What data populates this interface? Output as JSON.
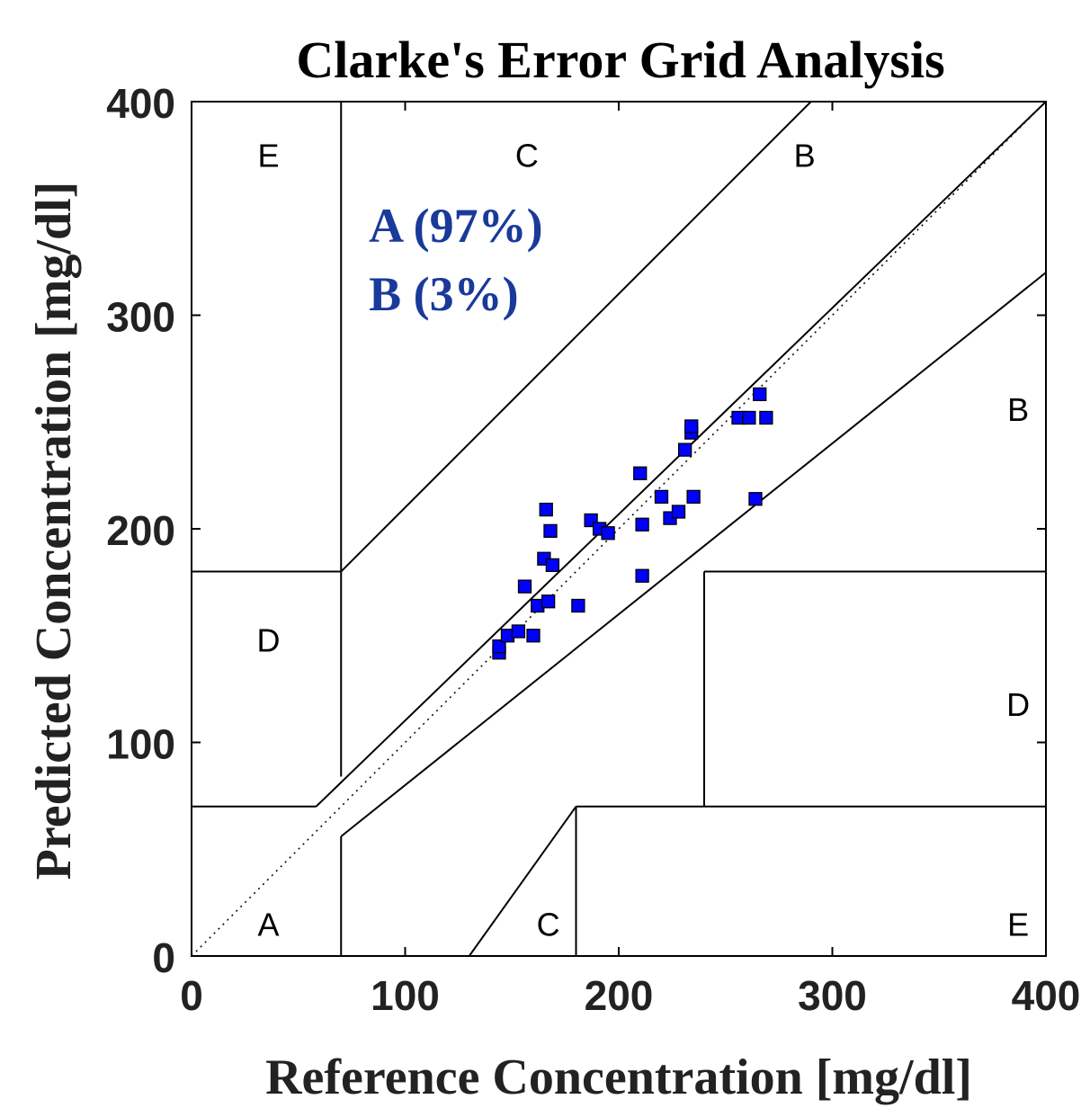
{
  "chart_data": {
    "type": "scatter",
    "title": "Clarke's Error Grid Analysis",
    "xlabel": "Reference Concentration [mg/dl]",
    "ylabel": "Predicted Concentration [mg/dl]",
    "xlim": [
      0,
      400
    ],
    "ylim": [
      0,
      400
    ],
    "xticks": [
      "0",
      "100",
      "200",
      "300",
      "400"
    ],
    "yticks": [
      "0",
      "100",
      "200",
      "300",
      "400"
    ],
    "grid": false,
    "marker_color": "#0000ff",
    "stat_color": "#1a3a9a",
    "zone_lines": [
      {
        "x": [
          0,
          58.33
        ],
        "y": [
          70,
          70
        ]
      },
      {
        "x": [
          58.33,
          400
        ],
        "y": [
          70,
          400
        ]
      },
      {
        "x": [
          70,
          70
        ],
        "y": [
          84,
          400
        ]
      },
      {
        "x": [
          70,
          290
        ],
        "y": [
          180,
          400
        ]
      },
      {
        "x": [
          70,
          70
        ],
        "y": [
          0,
          56
        ]
      },
      {
        "x": [
          70,
          400
        ],
        "y": [
          56,
          320
        ]
      },
      {
        "x": [
          180,
          400
        ],
        "y": [
          70,
          70
        ]
      },
      {
        "x": [
          180,
          180
        ],
        "y": [
          0,
          70
        ]
      },
      {
        "x": [
          240,
          240
        ],
        "y": [
          70,
          180
        ]
      },
      {
        "x": [
          240,
          400
        ],
        "y": [
          180,
          180
        ]
      },
      {
        "x": [
          130,
          180
        ],
        "y": [
          0,
          70
        ]
      },
      {
        "x": [
          0,
          70
        ],
        "y": [
          180,
          180
        ]
      }
    ],
    "diagonal": {
      "x": [
        0,
        400
      ],
      "y": [
        0,
        400
      ],
      "style": "dotted"
    },
    "zone_labels": [
      {
        "text": "E",
        "x": 36,
        "y": 375
      },
      {
        "text": "C",
        "x": 157,
        "y": 375
      },
      {
        "text": "B",
        "x": 287,
        "y": 375
      },
      {
        "text": "B",
        "x": 387,
        "y": 256
      },
      {
        "text": "D",
        "x": 36,
        "y": 148
      },
      {
        "text": "D",
        "x": 387,
        "y": 118
      },
      {
        "text": "A",
        "x": 36,
        "y": 15
      },
      {
        "text": "C",
        "x": 167,
        "y": 15
      },
      {
        "text": "E",
        "x": 387,
        "y": 15
      }
    ],
    "annotations": [
      {
        "text": "A (97%)",
        "x": 83,
        "y": 342
      },
      {
        "text": "B (3%)",
        "x": 83,
        "y": 310
      }
    ],
    "series": [
      {
        "points": [
          [
            144,
            142
          ],
          [
            144,
            145
          ],
          [
            148,
            150
          ],
          [
            153,
            152
          ],
          [
            156,
            173
          ],
          [
            160,
            150
          ],
          [
            162,
            164
          ],
          [
            165,
            186
          ],
          [
            166,
            209
          ],
          [
            167,
            166
          ],
          [
            168,
            199
          ],
          [
            169,
            183
          ],
          [
            181,
            164
          ],
          [
            187,
            204
          ],
          [
            191,
            200
          ],
          [
            195,
            198
          ],
          [
            210,
            226
          ],
          [
            211,
            202
          ],
          [
            211,
            178
          ],
          [
            220,
            215
          ],
          [
            224,
            205
          ],
          [
            228,
            208
          ],
          [
            231,
            237
          ],
          [
            234,
            245
          ],
          [
            234,
            248
          ],
          [
            235,
            215
          ],
          [
            256,
            252
          ],
          [
            261,
            252
          ],
          [
            264,
            214
          ],
          [
            266,
            263
          ],
          [
            269,
            252
          ]
        ]
      }
    ]
  }
}
